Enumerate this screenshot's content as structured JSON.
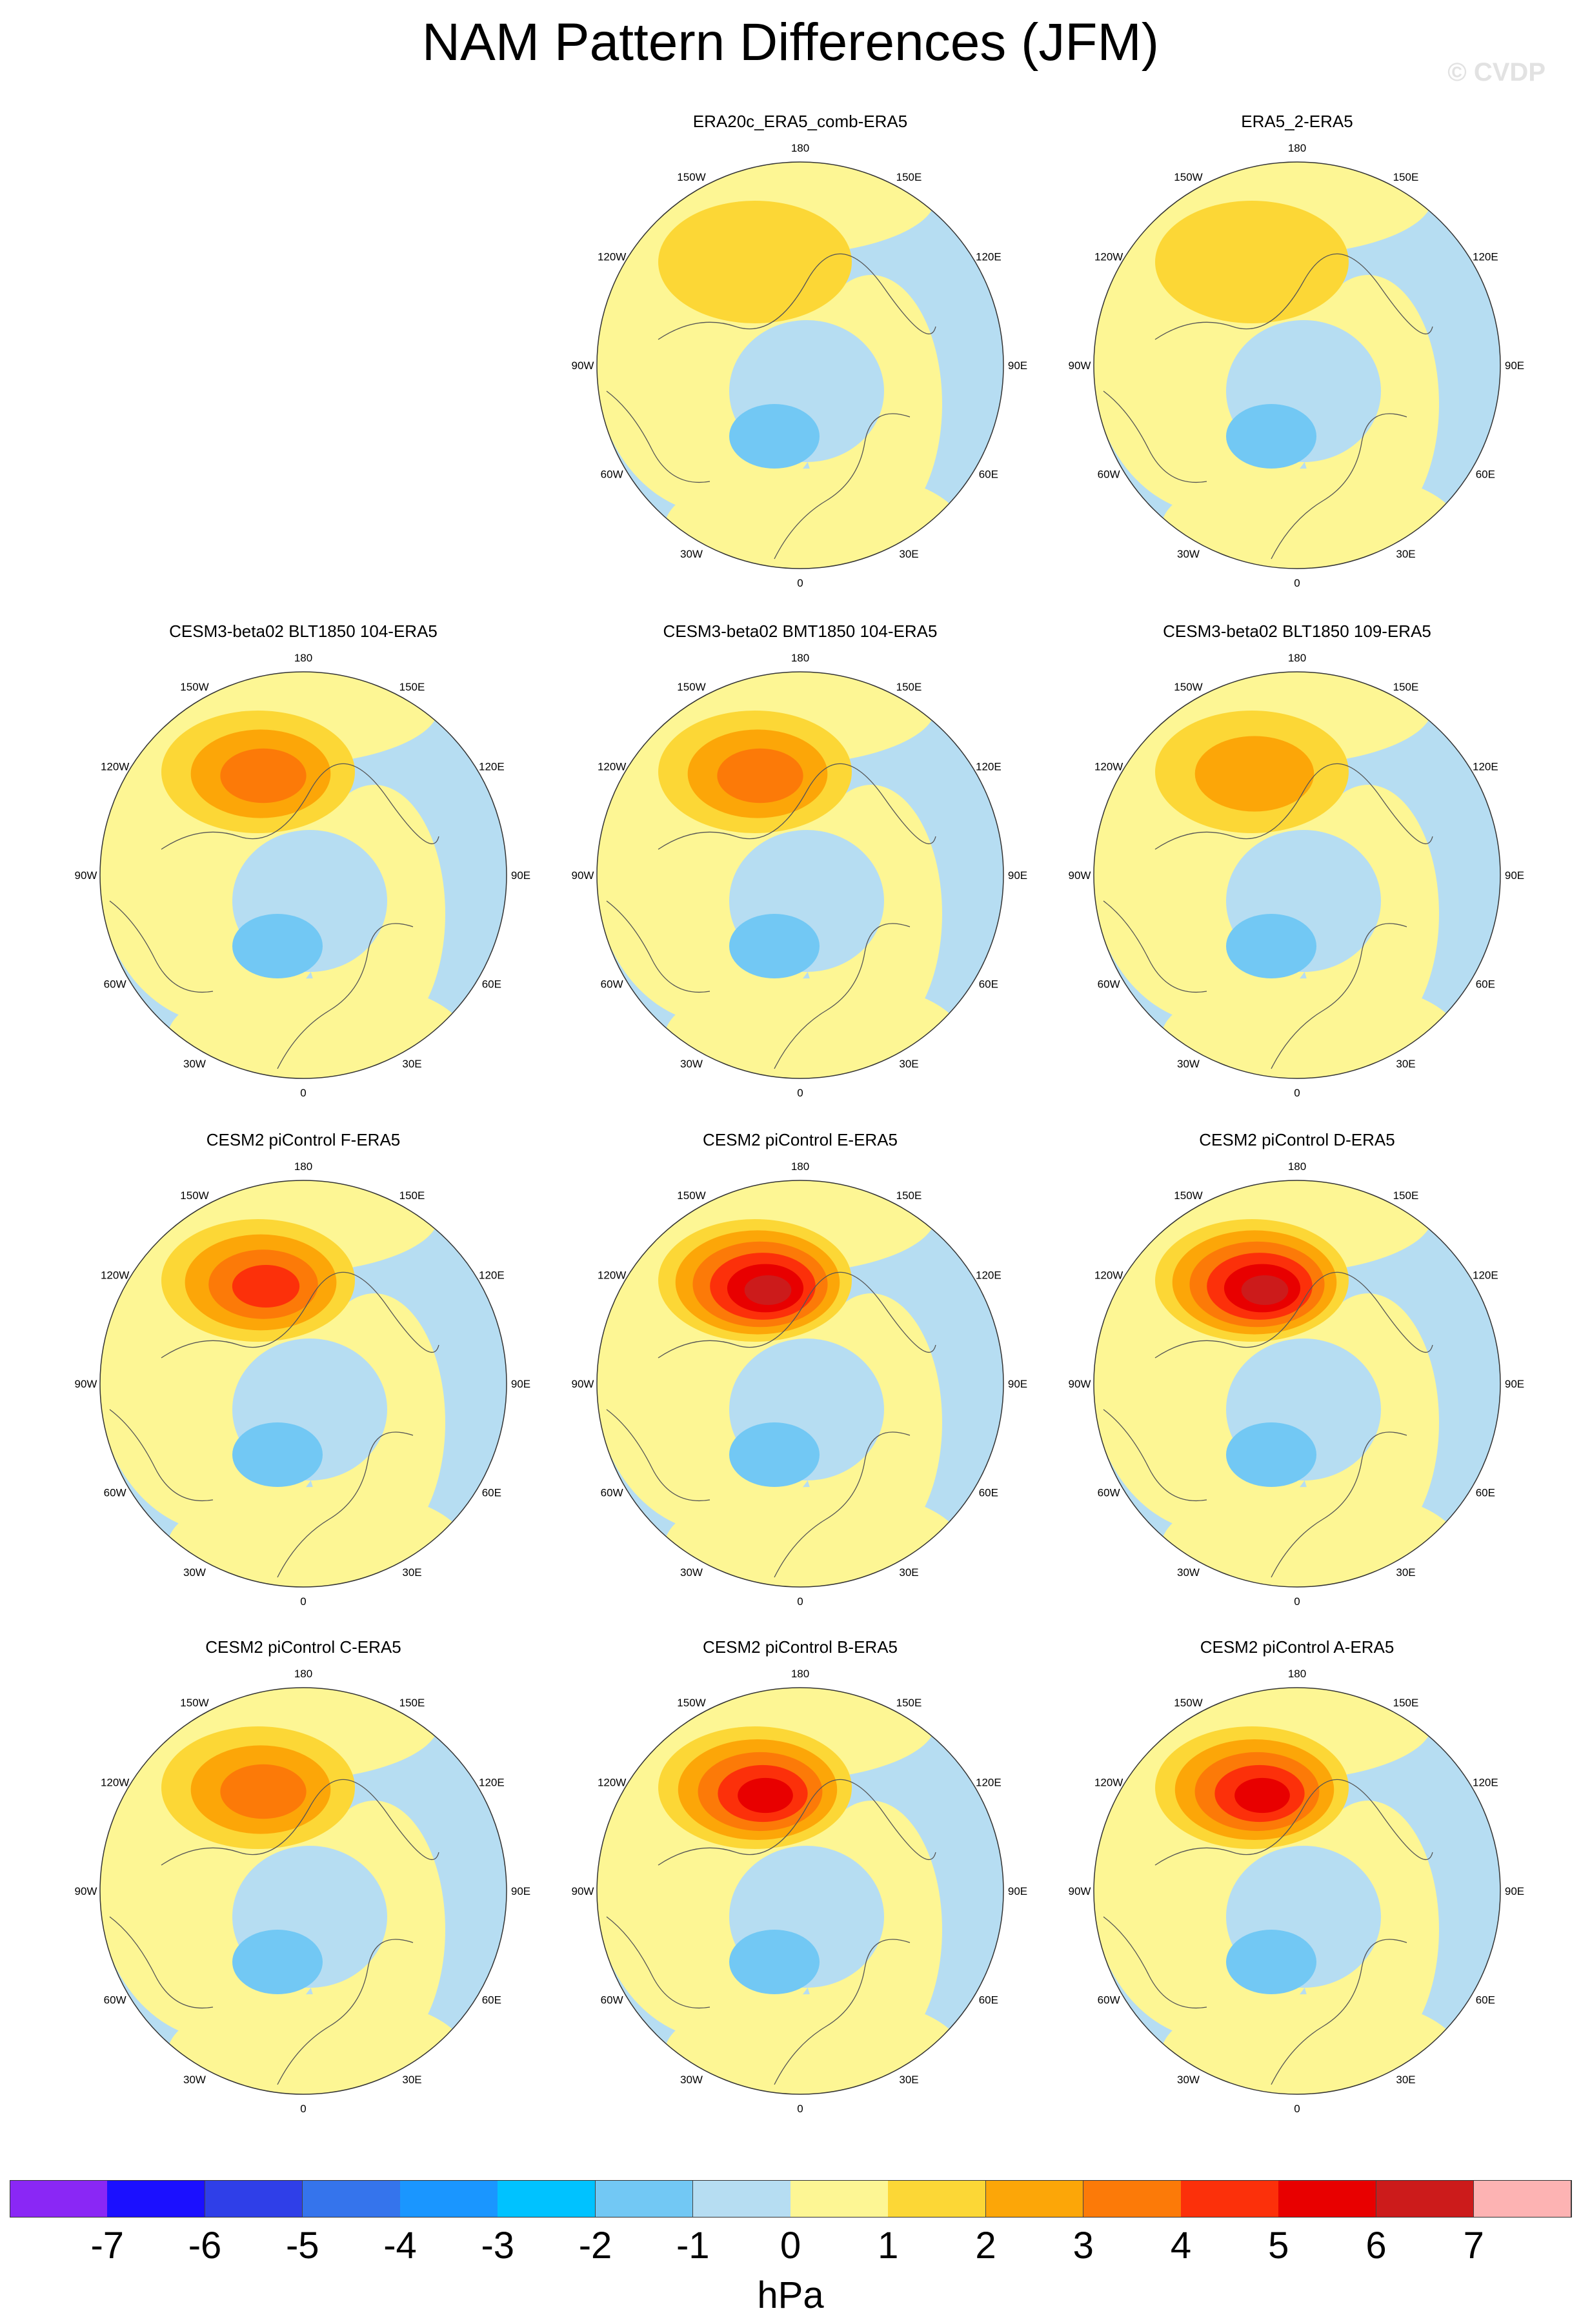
{
  "title": "NAM Pattern Differences (JFM)",
  "watermark": "© CVDP",
  "colorbar": {
    "labels": [
      "-7",
      "-6",
      "-5",
      "-4",
      "-3",
      "-2",
      "-1",
      "0",
      "1",
      "2",
      "3",
      "4",
      "5",
      "6",
      "7"
    ],
    "colors": [
      "#8a27f5",
      "#1b10ff",
      "#2f3fe8",
      "#3574ec",
      "#1a96ff",
      "#00c2ff",
      "#72c8f4",
      "#b6ddf2",
      "#fdf694",
      "#fcd736",
      "#fca608",
      "#fc7a08",
      "#fc300a",
      "#e80000",
      "#cc1b1b",
      "#fdb3b3"
    ],
    "units": "hPa"
  },
  "map_labels": {
    "top": "180",
    "bottom": "0",
    "left": "90W",
    "right": "90E",
    "upper_left_1": "150W",
    "upper_left_2": "120W",
    "lower_left_1": "60W",
    "lower_left_2": "30W",
    "upper_right_1": "150E",
    "upper_right_2": "120E",
    "lower_right_1": "60E",
    "lower_right_2": "30E"
  },
  "panels": [
    {
      "title": "ERA20c_ERA5_comb-ERA5",
      "max_anomaly": 1
    },
    {
      "title": "ERA5_2-ERA5",
      "max_anomaly": 1
    },
    {
      "title": "CESM3-beta02 BLT1850 104-ERA5",
      "max_anomaly": 3
    },
    {
      "title": "CESM3-beta02 BMT1850 104-ERA5",
      "max_anomaly": 3
    },
    {
      "title": "CESM3-beta02 BLT1850 109-ERA5",
      "max_anomaly": 2
    },
    {
      "title": "CESM2 piControl F-ERA5",
      "max_anomaly": 4
    },
    {
      "title": "CESM2 piControl E-ERA5",
      "max_anomaly": 6
    },
    {
      "title": "CESM2 piControl D-ERA5",
      "max_anomaly": 6
    },
    {
      "title": "CESM2 piControl C-ERA5",
      "max_anomaly": 3
    },
    {
      "title": "CESM2 piControl B-ERA5",
      "max_anomaly": 5
    },
    {
      "title": "CESM2 piControl A-ERA5",
      "max_anomaly": 5
    }
  ]
}
